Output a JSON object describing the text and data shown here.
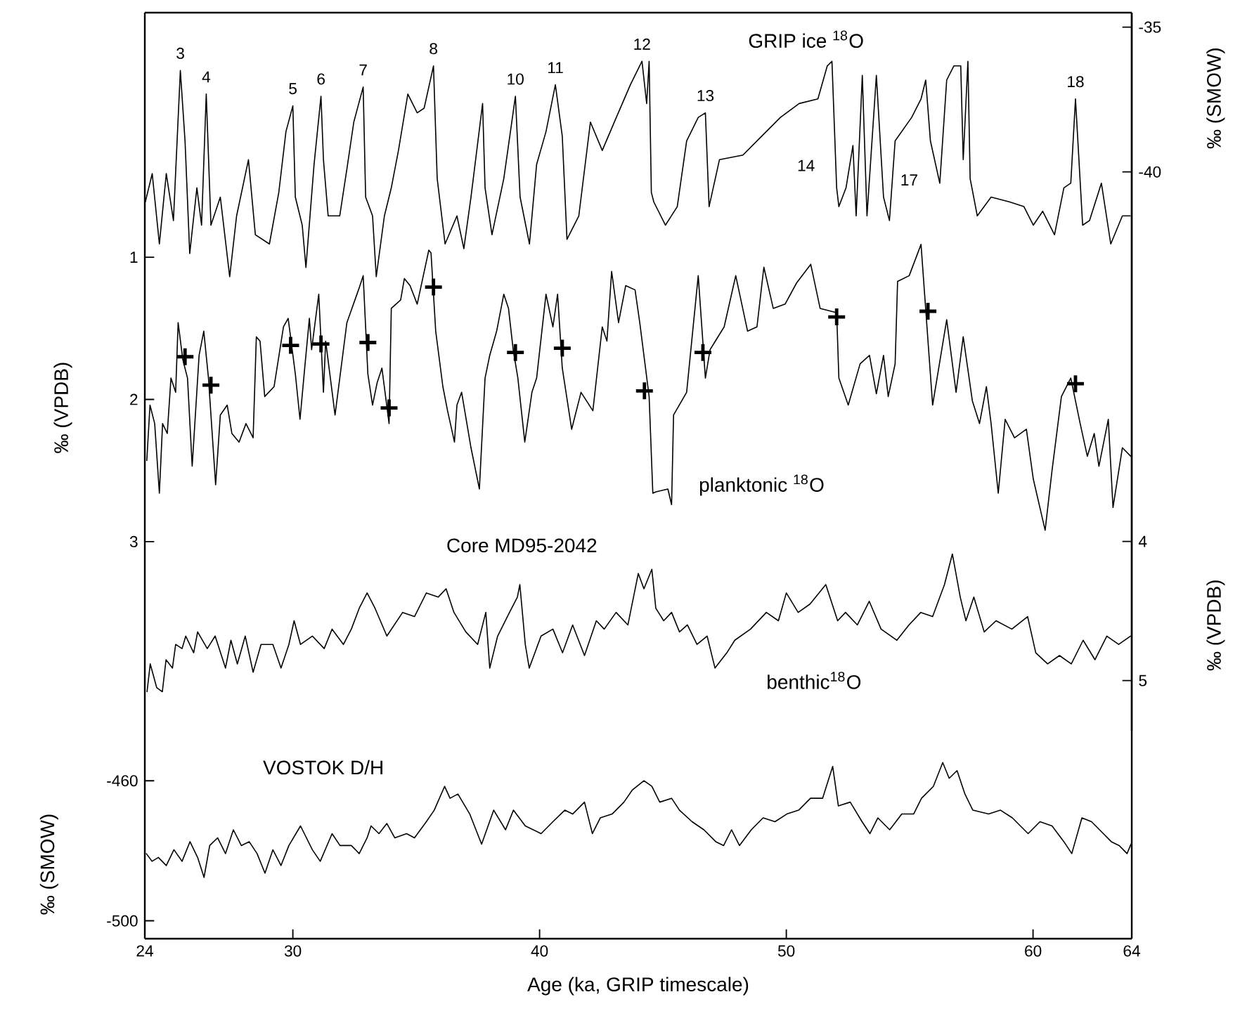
{
  "chart_data": [
    {
      "type": "line",
      "xlim": [
        24,
        64
      ],
      "tick_labels": "y",
      "ylabel": "‰ (SMOW)",
      "ylim": [
        -59.3,
        -34.5
      ],
      "yticks": [
        -35,
        -40
      ],
      "y2label": "‰ (VPDB)",
      "y2lim": [
        4.33,
        -0.72
      ],
      "y2ticks": [
        1,
        2,
        3
      ],
      "y3label": "‰ (VPDB)",
      "y3lim": [
        5.36,
        0.2
      ],
      "y3ticks": [
        4,
        5
      ],
      "series": [
        {
          "name": "GRIP ice $^{18}$O",
          "axis": "y",
          "color": "#000000",
          "x": [
            24.02,
            24.3,
            24.59,
            24.87,
            25.16,
            25.44,
            25.63,
            25.82,
            26.11,
            26.3,
            26.49,
            26.68,
            27.06,
            27.44,
            27.72,
            28.2,
            28.48,
            29.05,
            29.43,
            29.72,
            30.0,
            30.1,
            30.38,
            30.53,
            30.86,
            31.14,
            31.24,
            31.43,
            31.9,
            32.19,
            32.47,
            32.85,
            32.95,
            33.23,
            33.38,
            33.71,
            33.99,
            34.28,
            34.66,
            35.04,
            35.32,
            35.7,
            35.85,
            36.17,
            36.65,
            36.93,
            37.22,
            37.69,
            37.79,
            38.07,
            38.55,
            39.02,
            39.21,
            39.59,
            39.88,
            40.26,
            40.64,
            40.92,
            41.11,
            41.59,
            42.06,
            42.54,
            43.11,
            43.68,
            44.15,
            44.34,
            44.44,
            44.53,
            44.63,
            45.1,
            45.58,
            45.96,
            46.43,
            46.72,
            46.87,
            47.29,
            48.24,
            49.0,
            49.76,
            50.52,
            51.28,
            51.66,
            51.85,
            52.04,
            52.13,
            52.42,
            52.7,
            52.83,
            53.08,
            53.27,
            53.65,
            53.94,
            54.18,
            54.41,
            55.08,
            55.46,
            55.65,
            55.84,
            56.22,
            56.5,
            56.79,
            57.07,
            57.17,
            57.36,
            57.45,
            57.74,
            58.3,
            59.06,
            59.63,
            60.01,
            60.39,
            60.87,
            61.25,
            61.53,
            61.72,
            62.01,
            62.29,
            62.77,
            63.15,
            63.62,
            63.94
          ],
          "values": [
            -41.04,
            -40.06,
            -42.49,
            -40.06,
            -41.68,
            -36.5,
            -38.93,
            -42.82,
            -40.55,
            -41.84,
            -37.31,
            -41.84,
            -40.87,
            -43.62,
            -41.52,
            -39.58,
            -42.17,
            -42.49,
            -40.71,
            -38.61,
            -37.72,
            -40.87,
            -41.84,
            -43.3,
            -39.74,
            -37.39,
            -39.58,
            -41.52,
            -41.52,
            -39.9,
            -38.28,
            -37.07,
            -40.87,
            -41.52,
            -43.62,
            -41.52,
            -40.55,
            -39.26,
            -37.31,
            -37.96,
            -37.8,
            -36.34,
            -40.23,
            -42.49,
            -41.52,
            -42.65,
            -40.87,
            -37.64,
            -40.55,
            -42.17,
            -40.23,
            -37.39,
            -40.87,
            -42.49,
            -39.74,
            -38.61,
            -36.99,
            -38.77,
            -42.33,
            -41.52,
            -38.28,
            -39.26,
            -38.12,
            -36.99,
            -36.18,
            -37.64,
            -36.18,
            -40.71,
            -41.04,
            -41.84,
            -41.2,
            -38.93,
            -38.12,
            -37.96,
            -41.2,
            -39.58,
            -39.42,
            -38.77,
            -38.12,
            -37.64,
            -37.48,
            -36.34,
            -36.18,
            -40.55,
            -41.2,
            -40.55,
            -39.09,
            -41.52,
            -36.67,
            -41.52,
            -36.67,
            -40.87,
            -41.68,
            -38.93,
            -38.12,
            -37.48,
            -36.83,
            -38.93,
            -40.39,
            -36.83,
            -36.34,
            -36.34,
            -39.58,
            -36.18,
            -40.23,
            -41.52,
            -40.87,
            -41.04,
            -41.2,
            -41.84,
            -41.36,
            -42.17,
            -40.55,
            -40.39,
            -37.48,
            -41.84,
            -41.68,
            -40.39,
            -42.49,
            -41.52,
            -41.52
          ]
        },
        {
          "name": "planktonic $^{18}$O",
          "axis": "y2",
          "color": "#000000",
          "x": [
            24.08,
            24.21,
            24.4,
            24.59,
            24.72,
            24.91,
            25.06,
            25.25,
            25.35,
            25.54,
            25.73,
            25.92,
            26.2,
            26.39,
            26.58,
            26.87,
            27.06,
            27.34,
            27.53,
            27.82,
            28.1,
            28.39,
            28.52,
            28.67,
            28.86,
            29.24,
            29.62,
            29.81,
            30.1,
            30.29,
            30.48,
            30.67,
            30.76,
            31.05,
            31.24,
            31.33,
            31.71,
            32.19,
            32.66,
            32.85,
            33.04,
            33.23,
            33.42,
            33.61,
            33.9,
            33.99,
            34.37,
            34.52,
            34.75,
            35.04,
            35.51,
            35.6,
            35.79,
            36.08,
            36.27,
            36.55,
            36.65,
            36.84,
            37.22,
            37.56,
            37.79,
            37.98,
            38.26,
            38.55,
            38.74,
            38.93,
            39.12,
            39.4,
            39.69,
            39.88,
            40.26,
            40.54,
            40.73,
            40.92,
            41.3,
            41.68,
            42.16,
            42.54,
            42.73,
            42.92,
            43.2,
            43.49,
            43.87,
            44.06,
            44.44,
            44.59,
            44.72,
            45.2,
            45.35,
            45.43,
            45.96,
            46.43,
            46.72,
            46.91,
            47.48,
            47.95,
            48.43,
            48.81,
            49.09,
            49.47,
            49.95,
            50.42,
            50.99,
            51.37,
            52.04,
            52.13,
            52.51,
            52.99,
            53.37,
            53.65,
            53.94,
            54.13,
            54.41,
            54.51,
            54.98,
            55.46,
            55.93,
            56.5,
            56.88,
            57.17,
            57.54,
            57.83,
            58.11,
            58.3,
            58.59,
            58.87,
            59.25,
            59.73,
            60.01,
            60.49,
            60.77,
            61.15,
            61.53,
            61.91,
            62.2,
            62.48,
            62.67,
            63.05,
            63.24,
            63.62,
            63.96
          ],
          "values": [
            2.43,
            2.04,
            2.17,
            2.66,
            2.17,
            2.24,
            1.85,
            1.95,
            1.46,
            1.72,
            1.85,
            2.47,
            1.69,
            1.52,
            1.85,
            2.6,
            2.11,
            2.04,
            2.24,
            2.3,
            2.17,
            2.27,
            1.56,
            1.59,
            1.98,
            1.91,
            1.49,
            1.43,
            1.82,
            2.14,
            1.78,
            1.43,
            1.65,
            1.26,
            1.95,
            1.59,
            2.11,
            1.46,
            1.23,
            1.13,
            1.82,
            2.04,
            1.88,
            1.78,
            2.17,
            1.36,
            1.3,
            1.15,
            1.2,
            1.33,
            0.95,
            0.97,
            1.52,
            1.91,
            2.08,
            2.3,
            2.04,
            1.95,
            2.34,
            2.63,
            1.85,
            1.69,
            1.52,
            1.26,
            1.36,
            1.65,
            1.85,
            2.3,
            1.95,
            1.85,
            1.26,
            1.49,
            1.26,
            1.78,
            2.21,
            1.95,
            2.08,
            1.49,
            1.59,
            1.1,
            1.46,
            1.2,
            1.23,
            1.46,
            1.98,
            2.66,
            2.65,
            2.63,
            2.74,
            2.11,
            1.95,
            1.13,
            1.85,
            1.65,
            1.49,
            1.13,
            1.52,
            1.49,
            1.07,
            1.36,
            1.33,
            1.18,
            1.05,
            1.36,
            1.39,
            1.85,
            2.04,
            1.75,
            1.69,
            1.96,
            1.69,
            1.98,
            1.75,
            1.17,
            1.13,
            0.91,
            2.04,
            1.44,
            1.95,
            1.56,
            2.01,
            2.17,
            1.91,
            2.17,
            2.66,
            2.14,
            2.27,
            2.21,
            2.56,
            2.92,
            2.5,
            1.98,
            1.85,
            2.17,
            2.4,
            2.24,
            2.47,
            2.14,
            2.76,
            2.34,
            2.4
          ]
        },
        {
          "type": "scatter",
          "marker": "cross",
          "axis": "y2",
          "color": "#000000",
          "x": [
            25.63,
            26.68,
            29.91,
            31.14,
            33.04,
            33.9,
            35.7,
            39.02,
            40.92,
            44.25,
            46.62,
            52.04,
            55.74,
            61.72
          ],
          "values": [
            1.7,
            1.9,
            1.62,
            1.61,
            1.6,
            2.06,
            1.21,
            1.67,
            1.64,
            1.94,
            1.67,
            1.42,
            1.38,
            1.89
          ]
        },
        {
          "name": "benthic$^{18}$O",
          "axis": "y3",
          "color": "#000000",
          "x": [
            24.09,
            24.22,
            24.48,
            24.71,
            24.86,
            25.12,
            25.25,
            25.51,
            25.66,
            25.98,
            26.14,
            26.53,
            26.85,
            27.27,
            27.49,
            27.75,
            28.07,
            28.39,
            28.71,
            29.19,
            29.52,
            29.84,
            30.05,
            30.31,
            30.79,
            31.27,
            31.59,
            32.05,
            32.37,
            32.69,
            33.01,
            33.33,
            33.81,
            34.45,
            34.93,
            35.41,
            35.89,
            36.21,
            36.53,
            37.01,
            37.49,
            37.82,
            37.98,
            38.3,
            38.78,
            39.1,
            39.2,
            39.42,
            39.58,
            40.06,
            40.54,
            40.93,
            41.34,
            41.82,
            42.3,
            42.62,
            43.1,
            43.58,
            44.0,
            44.23,
            44.55,
            44.71,
            45.03,
            45.35,
            45.67,
            45.99,
            46.38,
            46.79,
            47.11,
            47.59,
            47.91,
            48.55,
            49.19,
            49.68,
            50.0,
            50.48,
            50.96,
            51.6,
            52.08,
            52.4,
            52.88,
            53.36,
            53.84,
            54.48,
            54.97,
            55.45,
            55.93,
            56.41,
            56.73,
            57.05,
            57.28,
            57.6,
            58.02,
            58.5,
            59.14,
            59.78,
            60.11,
            60.59,
            61.07,
            61.55,
            62.03,
            62.51,
            62.99,
            63.47,
            63.95
          ],
          "values": [
            5.08,
            4.88,
            5.05,
            5.08,
            4.85,
            4.91,
            4.74,
            4.77,
            4.68,
            4.8,
            4.65,
            4.77,
            4.68,
            4.91,
            4.71,
            4.88,
            4.68,
            4.94,
            4.74,
            4.74,
            4.91,
            4.74,
            4.57,
            4.74,
            4.68,
            4.77,
            4.63,
            4.74,
            4.63,
            4.48,
            4.37,
            4.48,
            4.68,
            4.51,
            4.54,
            4.37,
            4.4,
            4.34,
            4.51,
            4.65,
            4.74,
            4.51,
            4.91,
            4.68,
            4.51,
            4.4,
            4.31,
            4.74,
            4.91,
            4.68,
            4.63,
            4.8,
            4.6,
            4.82,
            4.57,
            4.63,
            4.51,
            4.6,
            4.23,
            4.34,
            4.2,
            4.48,
            4.57,
            4.51,
            4.65,
            4.6,
            4.74,
            4.68,
            4.91,
            4.8,
            4.71,
            4.63,
            4.51,
            4.57,
            4.37,
            4.51,
            4.45,
            4.31,
            4.57,
            4.51,
            4.6,
            4.43,
            4.63,
            4.71,
            4.6,
            4.51,
            4.54,
            4.31,
            4.09,
            4.4,
            4.57,
            4.4,
            4.65,
            4.57,
            4.63,
            4.54,
            4.8,
            4.88,
            4.82,
            4.88,
            4.71,
            4.85,
            4.68,
            4.74,
            4.68
          ]
        }
      ],
      "annotations": [
        {
          "text": "3",
          "x": 25.44,
          "y": -36.5
        },
        {
          "text": "4",
          "x": 26.49,
          "y": -37.31
        },
        {
          "text": "5",
          "x": 30.0,
          "y": -37.72
        },
        {
          "text": "6",
          "x": 31.14,
          "y": -37.39
        },
        {
          "text": "7",
          "x": 32.85,
          "y": -37.07
        },
        {
          "text": "8",
          "x": 35.7,
          "y": -36.34
        },
        {
          "text": "10",
          "x": 39.02,
          "y": -37.39
        },
        {
          "text": "11",
          "x": 40.64,
          "y": -36.99
        },
        {
          "text": "12",
          "x": 44.15,
          "y": -36.18
        },
        {
          "text": "13",
          "x": 46.72,
          "y": -37.96
        },
        "14",
        "17",
        {
          "text": "18",
          "x": 61.72,
          "y": -37.48
        },
        "Core MD95-2042"
      ]
    },
    {
      "type": "line",
      "xlabel": "Age (ka, GRIP timescale)",
      "xlim": [
        24,
        64
      ],
      "xticks": [
        24,
        30,
        40,
        50,
        60,
        64
      ],
      "ylabel": "‰ (SMOW)",
      "ylim": [
        -505.1,
        -445.7
      ],
      "yticks": [
        -460,
        -500
      ],
      "series": [
        {
          "name": "VOSTOK D/H",
          "color": "#000000",
          "x": [
            24.06,
            24.29,
            24.55,
            24.87,
            25.18,
            25.51,
            25.83,
            26.14,
            26.4,
            26.63,
            26.95,
            27.27,
            27.59,
            27.91,
            28.23,
            28.55,
            28.87,
            29.19,
            29.52,
            29.84,
            30.31,
            30.79,
            31.11,
            31.59,
            31.91,
            32.37,
            32.69,
            33.01,
            33.17,
            33.49,
            33.81,
            34.13,
            34.61,
            34.93,
            35.41,
            35.73,
            36.15,
            36.37,
            36.69,
            37.17,
            37.65,
            38.14,
            38.62,
            38.94,
            39.42,
            40.06,
            40.54,
            41.02,
            41.34,
            41.82,
            42.14,
            42.46,
            42.94,
            43.42,
            43.75,
            44.23,
            44.55,
            44.87,
            45.35,
            45.67,
            46.18,
            46.66,
            47.14,
            47.46,
            47.78,
            48.1,
            48.58,
            49.06,
            49.54,
            50.02,
            50.5,
            50.98,
            51.47,
            51.88,
            52.11,
            52.59,
            53.07,
            53.39,
            53.71,
            54.19,
            54.68,
            55.16,
            55.48,
            55.96,
            56.34,
            56.6,
            56.92,
            57.24,
            57.56,
            58.2,
            58.68,
            59.16,
            59.8,
            60.28,
            60.77,
            61.25,
            61.57,
            61.98,
            62.37,
            62.85,
            63.17,
            63.49,
            63.81,
            63.97
          ],
          "values": [
            -480.8,
            -483.0,
            -481.9,
            -484.2,
            -479.7,
            -483.0,
            -477.4,
            -481.9,
            -487.6,
            -478.5,
            -476.3,
            -480.8,
            -474.0,
            -478.5,
            -477.4,
            -480.8,
            -486.4,
            -479.7,
            -484.2,
            -478.5,
            -472.9,
            -479.7,
            -483.0,
            -475.1,
            -478.5,
            -478.5,
            -480.8,
            -476.3,
            -472.9,
            -475.1,
            -472.2,
            -476.3,
            -475.1,
            -476.3,
            -471.7,
            -468.4,
            -461.6,
            -465.0,
            -463.8,
            -469.5,
            -478.1,
            -468.4,
            -474.0,
            -468.4,
            -472.9,
            -475.1,
            -471.7,
            -468.4,
            -469.5,
            -466.1,
            -475.1,
            -470.6,
            -469.5,
            -466.1,
            -462.7,
            -460.0,
            -461.6,
            -466.1,
            -465.0,
            -468.4,
            -471.7,
            -474.0,
            -477.4,
            -478.5,
            -474.0,
            -478.5,
            -474.0,
            -470.6,
            -471.7,
            -469.5,
            -468.4,
            -465.0,
            -465.0,
            -455.9,
            -467.2,
            -466.1,
            -471.7,
            -475.1,
            -470.6,
            -474.0,
            -469.5,
            -469.5,
            -465.0,
            -461.6,
            -454.8,
            -459.3,
            -457.1,
            -463.8,
            -468.4,
            -469.5,
            -468.4,
            -470.6,
            -475.1,
            -471.7,
            -472.9,
            -477.4,
            -480.8,
            -470.6,
            -471.7,
            -475.1,
            -477.4,
            -478.5,
            -480.8,
            -478.1
          ]
        }
      ]
    }
  ]
}
